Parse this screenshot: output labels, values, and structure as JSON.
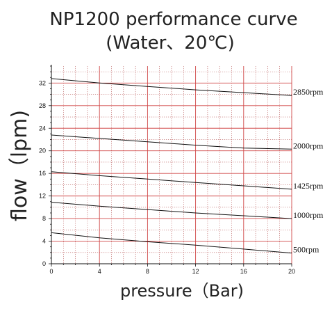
{
  "chart_data": {
    "type": "line",
    "title": "NP1200 performance curve",
    "subtitle": "(Water、20℃)",
    "xlabel": "pressure（Bar)",
    "ylabel": "flow（lpm)",
    "xlim": [
      0,
      20
    ],
    "ylim": [
      0,
      35
    ],
    "xticks": [
      0,
      4,
      8,
      12,
      16,
      20
    ],
    "yticks": [
      0,
      4,
      8,
      12,
      16,
      20,
      24,
      28,
      32
    ],
    "grid": true,
    "colors": {
      "major_grid": "#d04848",
      "minor_grid": "#b85858",
      "series": "#111111",
      "axis": "#111111"
    },
    "series": [
      {
        "name": "2850rpm",
        "x": [
          0,
          4,
          8,
          12,
          16,
          20
        ],
        "y": [
          32.8,
          32.0,
          31.4,
          30.8,
          30.3,
          29.8
        ]
      },
      {
        "name": "2000rpm",
        "x": [
          0,
          4,
          8,
          12,
          16,
          20
        ],
        "y": [
          22.8,
          22.2,
          21.6,
          21.0,
          20.5,
          20.3
        ]
      },
      {
        "name": "1425rpm",
        "x": [
          0,
          4,
          8,
          12,
          16,
          20
        ],
        "y": [
          16.3,
          15.6,
          15.0,
          14.4,
          13.8,
          13.2
        ]
      },
      {
        "name": "1000rpm",
        "x": [
          0,
          4,
          8,
          12,
          16,
          20
        ],
        "y": [
          10.9,
          10.2,
          9.6,
          9.0,
          8.5,
          8.0
        ]
      },
      {
        "name": "500rpm",
        "x": [
          0,
          4,
          8,
          12,
          16,
          20
        ],
        "y": [
          5.5,
          4.6,
          3.9,
          3.3,
          2.6,
          1.9
        ]
      }
    ]
  }
}
